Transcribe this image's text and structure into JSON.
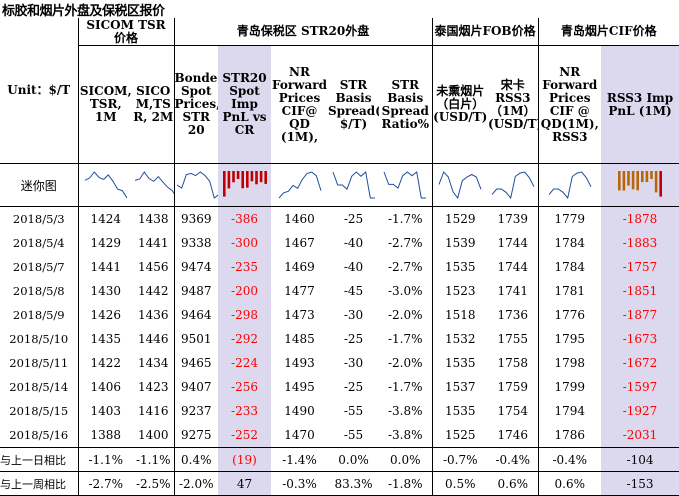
{
  "title": "标胶和烟片外盘及保税区报价",
  "groups": {
    "sicom": "SICOM TSR 价格",
    "qingdao": "青岛保税区 STR20外盘",
    "thai": "泰国烟片FOB价格",
    "cif": "青岛烟片CIF价格"
  },
  "unit": "Unit：$/T",
  "headers": [
    "SICOM, TSR, 1M",
    "SICO M,TS R, 2M",
    "Bonded Spot Prices, STR 20",
    "STR20 Spot Imp PnL vs CR",
    "NR Forward Prices CIF@ QD (1M),",
    "STR Basis Spread( $/T)",
    "STR Basis Spread Ratio%",
    "未熏烟片（白片）(USD/T)",
    "宋卡 RSS3（1M）(USD/T)",
    "NR Forward Prices CIF @ QD(1M), RSS3",
    "RSS3 Imp PnL (1M)"
  ],
  "mini_label": "迷你图",
  "rows": [
    {
      "date": "2018/5/3",
      "v": [
        "1424",
        "1438",
        "9369",
        "-386",
        "1460",
        "-25",
        "-1.7%",
        "1529",
        "1739",
        "1779",
        "-1878"
      ]
    },
    {
      "date": "2018/5/4",
      "v": [
        "1429",
        "1441",
        "9338",
        "-300",
        "1467",
        "-40",
        "-2.7%",
        "1539",
        "1744",
        "1784",
        "-1883"
      ]
    },
    {
      "date": "2018/5/7",
      "v": [
        "1441",
        "1456",
        "9474",
        "-235",
        "1469",
        "-40",
        "-2.7%",
        "1535",
        "1744",
        "1784",
        "-1757"
      ]
    },
    {
      "date": "2018/5/8",
      "v": [
        "1430",
        "1442",
        "9487",
        "-200",
        "1477",
        "-45",
        "-3.0%",
        "1523",
        "1741",
        "1781",
        "-1851"
      ]
    },
    {
      "date": "2018/5/9",
      "v": [
        "1426",
        "1436",
        "9464",
        "-298",
        "1473",
        "-30",
        "-2.0%",
        "1518",
        "1736",
        "1776",
        "-1877"
      ]
    },
    {
      "date": "2018/5/10",
      "v": [
        "1435",
        "1446",
        "9501",
        "-292",
        "1485",
        "-25",
        "-1.7%",
        "1532",
        "1755",
        "1795",
        "-1673"
      ]
    },
    {
      "date": "2018/5/11",
      "v": [
        "1422",
        "1434",
        "9465",
        "-224",
        "1493",
        "-30",
        "-2.0%",
        "1535",
        "1758",
        "1798",
        "-1672"
      ]
    },
    {
      "date": "2018/5/14",
      "v": [
        "1406",
        "1423",
        "9407",
        "-256",
        "1495",
        "-25",
        "-1.7%",
        "1537",
        "1759",
        "1799",
        "-1597"
      ]
    },
    {
      "date": "2018/5/15",
      "v": [
        "1403",
        "1416",
        "9237",
        "-233",
        "1490",
        "-55",
        "-3.8%",
        "1535",
        "1754",
        "1794",
        "-1927"
      ]
    },
    {
      "date": "2018/5/16",
      "v": [
        "1388",
        "1400",
        "9275",
        "-252",
        "1470",
        "-55",
        "-3.8%",
        "1525",
        "1746",
        "1786",
        "-2031"
      ]
    }
  ],
  "changes": [
    {
      "label": "与上一日相比",
      "v": [
        "-1.1%",
        "-1.1%",
        "0.4%",
        "(19)",
        "-1.4%",
        "0.0%",
        "0.0%",
        "-0.7%",
        "-0.4%",
        "-0.4%",
        "-104"
      ]
    },
    {
      "label": "与上一周相比",
      "v": [
        "-2.7%",
        "-2.5%",
        "-2.0%",
        "47",
        "-0.3%",
        "83.3%",
        "-1.8%",
        "0.5%",
        "0.6%",
        "0.6%",
        "-153"
      ]
    }
  ],
  "colors": {
    "highlight": "#dcd8ee",
    "negative": "#ff0000",
    "sparkline": "#1f4e9c",
    "bars": "#c00000",
    "bars_orange": "#b8660b"
  }
}
